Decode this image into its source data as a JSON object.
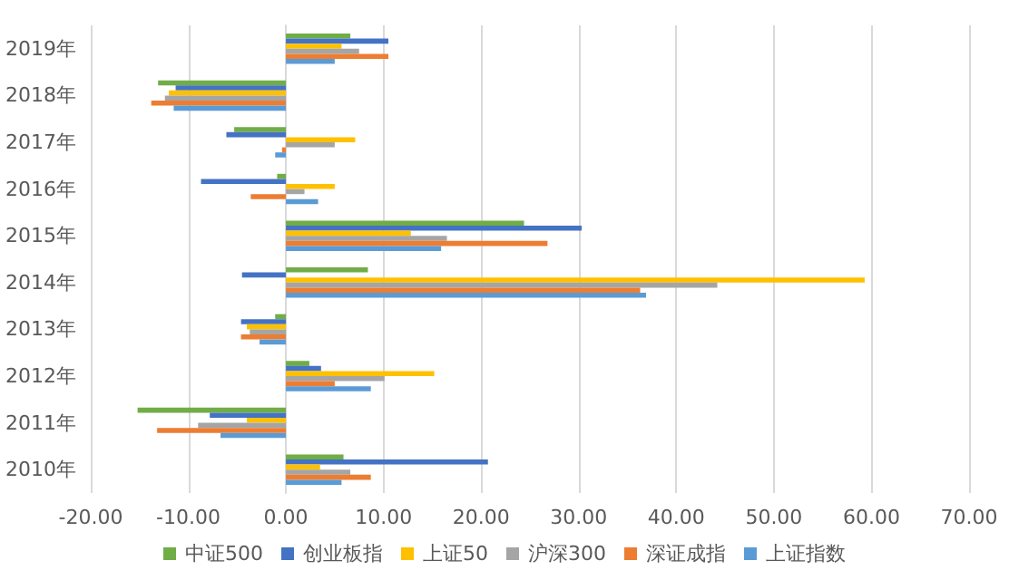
{
  "chart_data": {
    "type": "bar",
    "orientation": "horizontal",
    "categories": [
      "2019年",
      "2018年",
      "2017年",
      "2016年",
      "2015年",
      "2014年",
      "2013年",
      "2012年",
      "2011年",
      "2010年"
    ],
    "series": [
      {
        "name": "中证500",
        "color": "#70ad47",
        "values": [
          6.6,
          -13.1,
          -5.3,
          -0.9,
          24.4,
          8.4,
          -1.1,
          2.4,
          -15.2,
          5.9
        ]
      },
      {
        "name": "创业板指",
        "color": "#4472c4",
        "values": [
          10.5,
          -11.3,
          -6.1,
          -8.7,
          30.3,
          -4.5,
          -4.6,
          3.6,
          -7.8,
          20.7
        ]
      },
      {
        "name": "上证50",
        "color": "#ffc000",
        "values": [
          5.7,
          -12.0,
          7.1,
          5.0,
          12.8,
          59.3,
          -4.0,
          15.2,
          -4.0,
          3.5
        ]
      },
      {
        "name": "沪深300",
        "color": "#a5a5a5",
        "values": [
          7.5,
          -12.4,
          5.0,
          1.9,
          16.5,
          44.2,
          -3.7,
          10.1,
          -9.0,
          6.6
        ]
      },
      {
        "name": "深证成指",
        "color": "#ed7d31",
        "values": [
          10.5,
          -13.8,
          -0.4,
          -3.6,
          26.8,
          36.3,
          -4.6,
          5.0,
          -13.2,
          8.7
        ]
      },
      {
        "name": "上证指数",
        "color": "#5b9bd5",
        "values": [
          5.0,
          -11.5,
          -1.1,
          3.3,
          15.9,
          36.9,
          -2.7,
          8.7,
          -6.7,
          5.7
        ]
      }
    ],
    "xlim": [
      -20,
      70
    ],
    "xticks": [
      {
        "value": -20,
        "label": "-20.00"
      },
      {
        "value": -10,
        "label": "-10.00"
      },
      {
        "value": 0,
        "label": "0.00"
      },
      {
        "value": 10,
        "label": "10.00"
      },
      {
        "value": 20,
        "label": "20.00"
      },
      {
        "value": 30,
        "label": "30.00"
      },
      {
        "value": 40,
        "label": "40.00"
      },
      {
        "value": 50,
        "label": "50.00"
      },
      {
        "value": 60,
        "label": "60.00"
      },
      {
        "value": 70,
        "label": "70.00"
      }
    ],
    "grid": "x",
    "legend": "bottom"
  }
}
